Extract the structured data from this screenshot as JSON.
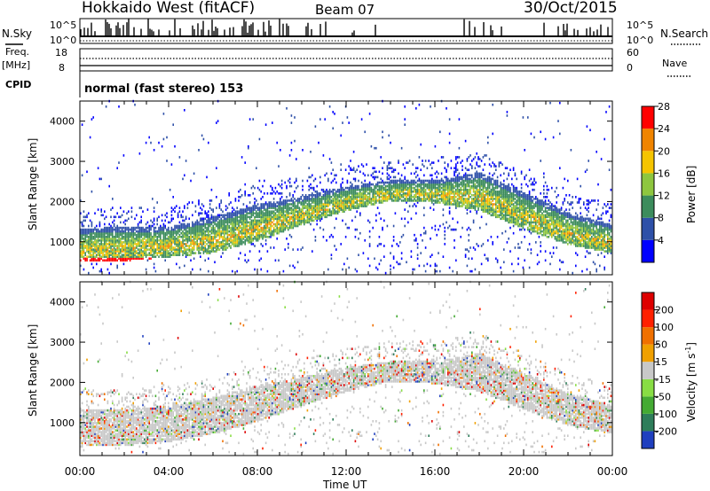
{
  "header": {
    "station": "Hokkaido West (fitACF)",
    "beam": "Beam 07",
    "date": "30/Oct/2015"
  },
  "noise_panel": {
    "left_label": "N.Sky",
    "right_label": "N.Search",
    "left_ticks": [
      "10^5",
      "10^0"
    ],
    "right_ticks": [
      "10^5",
      "10^0"
    ]
  },
  "freq_panel": {
    "left_label": "Freq.",
    "unit": "[MHz]",
    "left_ticks": [
      "18",
      "8"
    ],
    "right_label": "Nave",
    "right_ticks": [
      "60",
      "0"
    ]
  },
  "cpid_panel": {
    "label": "CPID",
    "text": "normal (fast stereo) 153"
  },
  "time_axis": {
    "label": "Time UT",
    "ticks": [
      "00:00",
      "04:00",
      "08:00",
      "12:00",
      "16:00",
      "20:00",
      "00:00"
    ]
  },
  "chart_data": [
    {
      "type": "heatmap",
      "quantity": "Power",
      "ylabel": "Slant Range [km]",
      "xlabel": "Time UT",
      "x_ticks": [
        "00:00",
        "04:00",
        "08:00",
        "12:00",
        "16:00",
        "20:00",
        "00:00"
      ],
      "y_ticks": [
        1000,
        2000,
        3000,
        4000
      ],
      "ylim": [
        180,
        4500
      ],
      "xlim_hours": [
        0,
        24
      ],
      "colorbar": {
        "label": "Power [dB]",
        "ticks": [
          "4",
          "8",
          "12",
          "16",
          "20",
          "24",
          "28"
        ],
        "colors": [
          "#0000ff",
          "#2e50a8",
          "#3c8c5c",
          "#8ec63f",
          "#f5c400",
          "#f08400",
          "#ff0000"
        ]
      },
      "echo_band": [
        {
          "t": 0,
          "lo": 500,
          "hi": 1300
        },
        {
          "t": 2,
          "lo": 500,
          "hi": 1350
        },
        {
          "t": 4,
          "lo": 600,
          "hi": 1350
        },
        {
          "t": 6,
          "lo": 700,
          "hi": 1600
        },
        {
          "t": 8,
          "lo": 1000,
          "hi": 1900
        },
        {
          "t": 10,
          "lo": 1400,
          "hi": 2100
        },
        {
          "t": 12,
          "lo": 1750,
          "hi": 2350
        },
        {
          "t": 14,
          "lo": 2000,
          "hi": 2500
        },
        {
          "t": 16,
          "lo": 1950,
          "hi": 2500
        },
        {
          "t": 18,
          "lo": 1750,
          "hi": 2700
        },
        {
          "t": 20,
          "lo": 1300,
          "hi": 2200
        },
        {
          "t": 22,
          "lo": 900,
          "hi": 1700
        },
        {
          "t": 24,
          "lo": 700,
          "hi": 1400
        }
      ]
    },
    {
      "type": "heatmap",
      "quantity": "Velocity",
      "ylabel": "Slant Range [km]",
      "xlabel": "Time UT",
      "x_ticks": [
        "00:00",
        "04:00",
        "08:00",
        "12:00",
        "16:00",
        "20:00",
        "00:00"
      ],
      "y_ticks": [
        1000,
        2000,
        3000,
        4000
      ],
      "ylim": [
        180,
        4500
      ],
      "xlim_hours": [
        0,
        24
      ],
      "colorbar": {
        "label": "Velocity [m s^-1]",
        "ticks": [
          "200",
          "100",
          "50",
          "15",
          "-15",
          "-50",
          "-100",
          "-200"
        ],
        "colors": [
          "#1f3fbf",
          "#2e7d5a",
          "#44aa33",
          "#88dd44",
          "#c8c8c8",
          "#f0a000",
          "#f07000",
          "#ff2000",
          "#dd0000"
        ]
      },
      "echo_band": [
        {
          "t": 0,
          "lo": 400,
          "hi": 1300
        },
        {
          "t": 2,
          "lo": 400,
          "hi": 1300
        },
        {
          "t": 4,
          "lo": 500,
          "hi": 1400
        },
        {
          "t": 6,
          "lo": 700,
          "hi": 1600
        },
        {
          "t": 8,
          "lo": 1000,
          "hi": 1900
        },
        {
          "t": 10,
          "lo": 1400,
          "hi": 2100
        },
        {
          "t": 12,
          "lo": 1750,
          "hi": 2350
        },
        {
          "t": 14,
          "lo": 2000,
          "hi": 2500
        },
        {
          "t": 16,
          "lo": 1950,
          "hi": 2500
        },
        {
          "t": 18,
          "lo": 1750,
          "hi": 2700
        },
        {
          "t": 20,
          "lo": 1300,
          "hi": 2200
        },
        {
          "t": 22,
          "lo": 900,
          "hi": 1700
        },
        {
          "t": 24,
          "lo": 700,
          "hi": 1400
        }
      ]
    }
  ]
}
